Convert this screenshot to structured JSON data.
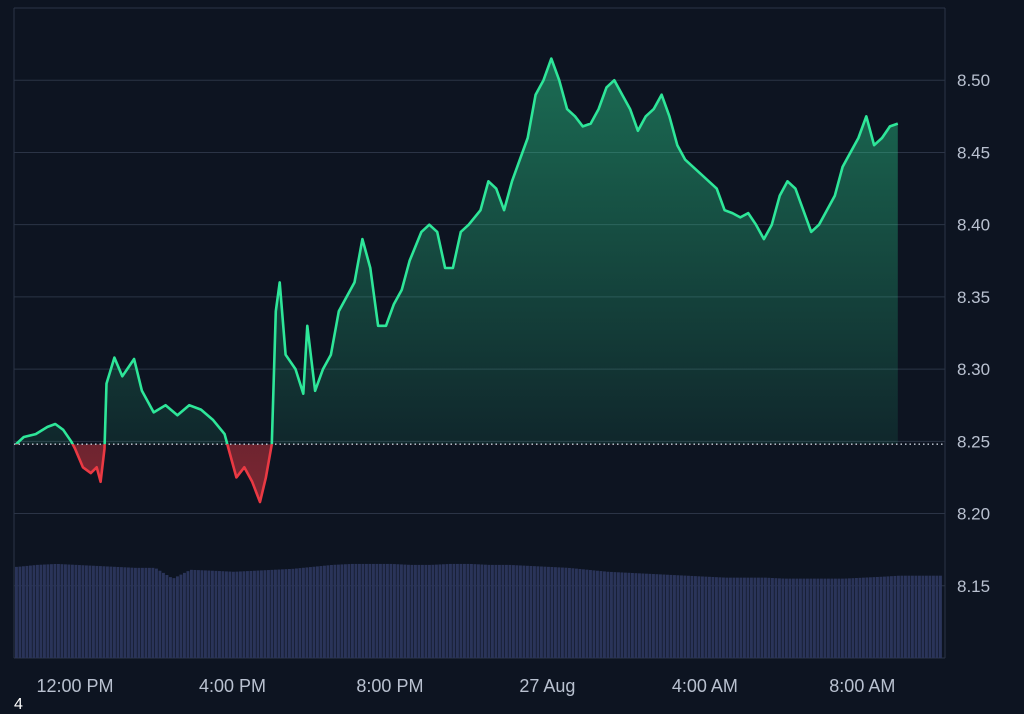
{
  "chart_data": {
    "type": "area",
    "baseline": 8.248,
    "ylim": [
      8.1,
      8.55
    ],
    "y_ticks": [
      "8.50",
      "8.45",
      "8.40",
      "8.35",
      "8.30",
      "8.25",
      "8.20",
      "8.15"
    ],
    "x_ticks": [
      {
        "label": "12:00 PM",
        "t": 1
      },
      {
        "label": "4:00 PM",
        "t": 5
      },
      {
        "label": "8:00 PM",
        "t": 9
      },
      {
        "label": "27 Aug",
        "t": 13
      },
      {
        "label": "4:00 AM",
        "t": 17
      },
      {
        "label": "8:00 AM",
        "t": 21
      }
    ],
    "xlim": [
      -0.55,
      23.1
    ],
    "grid": true,
    "price": [
      [
        -0.5,
        8.248
      ],
      [
        -0.3,
        8.253
      ],
      [
        0.0,
        8.255
      ],
      [
        0.3,
        8.26
      ],
      [
        0.5,
        8.262
      ],
      [
        0.7,
        8.258
      ],
      [
        0.9,
        8.25
      ],
      [
        1.0,
        8.245
      ],
      [
        1.2,
        8.232
      ],
      [
        1.4,
        8.228
      ],
      [
        1.55,
        8.232
      ],
      [
        1.65,
        8.222
      ],
      [
        1.75,
        8.245
      ],
      [
        1.8,
        8.29
      ],
      [
        2.0,
        8.308
      ],
      [
        2.2,
        8.295
      ],
      [
        2.5,
        8.307
      ],
      [
        2.7,
        8.285
      ],
      [
        3.0,
        8.27
      ],
      [
        3.3,
        8.275
      ],
      [
        3.6,
        8.268
      ],
      [
        3.9,
        8.275
      ],
      [
        4.2,
        8.272
      ],
      [
        4.5,
        8.265
      ],
      [
        4.8,
        8.255
      ],
      [
        4.9,
        8.245
      ],
      [
        5.1,
        8.225
      ],
      [
        5.3,
        8.232
      ],
      [
        5.5,
        8.222
      ],
      [
        5.7,
        8.208
      ],
      [
        5.85,
        8.225
      ],
      [
        6.0,
        8.248
      ],
      [
        6.1,
        8.34
      ],
      [
        6.2,
        8.36
      ],
      [
        6.35,
        8.31
      ],
      [
        6.6,
        8.3
      ],
      [
        6.8,
        8.283
      ],
      [
        6.9,
        8.33
      ],
      [
        7.1,
        8.285
      ],
      [
        7.3,
        8.3
      ],
      [
        7.5,
        8.31
      ],
      [
        7.7,
        8.34
      ],
      [
        7.9,
        8.35
      ],
      [
        8.1,
        8.36
      ],
      [
        8.3,
        8.39
      ],
      [
        8.5,
        8.37
      ],
      [
        8.7,
        8.33
      ],
      [
        8.9,
        8.33
      ],
      [
        9.1,
        8.345
      ],
      [
        9.3,
        8.355
      ],
      [
        9.5,
        8.375
      ],
      [
        9.8,
        8.395
      ],
      [
        10.0,
        8.4
      ],
      [
        10.2,
        8.395
      ],
      [
        10.4,
        8.37
      ],
      [
        10.6,
        8.37
      ],
      [
        10.8,
        8.395
      ],
      [
        11.0,
        8.4
      ],
      [
        11.3,
        8.41
      ],
      [
        11.5,
        8.43
      ],
      [
        11.7,
        8.425
      ],
      [
        11.9,
        8.41
      ],
      [
        12.1,
        8.43
      ],
      [
        12.3,
        8.445
      ],
      [
        12.5,
        8.46
      ],
      [
        12.7,
        8.49
      ],
      [
        12.9,
        8.5
      ],
      [
        13.1,
        8.515
      ],
      [
        13.3,
        8.5
      ],
      [
        13.5,
        8.48
      ],
      [
        13.7,
        8.475
      ],
      [
        13.9,
        8.468
      ],
      [
        14.1,
        8.47
      ],
      [
        14.3,
        8.48
      ],
      [
        14.5,
        8.495
      ],
      [
        14.7,
        8.5
      ],
      [
        14.9,
        8.49
      ],
      [
        15.1,
        8.48
      ],
      [
        15.3,
        8.465
      ],
      [
        15.5,
        8.475
      ],
      [
        15.7,
        8.48
      ],
      [
        15.9,
        8.49
      ],
      [
        16.1,
        8.475
      ],
      [
        16.3,
        8.455
      ],
      [
        16.5,
        8.445
      ],
      [
        16.7,
        8.44
      ],
      [
        16.9,
        8.435
      ],
      [
        17.1,
        8.43
      ],
      [
        17.3,
        8.425
      ],
      [
        17.5,
        8.41
      ],
      [
        17.7,
        8.408
      ],
      [
        17.9,
        8.405
      ],
      [
        18.1,
        8.408
      ],
      [
        18.3,
        8.4
      ],
      [
        18.5,
        8.39
      ],
      [
        18.7,
        8.4
      ],
      [
        18.9,
        8.42
      ],
      [
        19.1,
        8.43
      ],
      [
        19.3,
        8.425
      ],
      [
        19.5,
        8.41
      ],
      [
        19.7,
        8.395
      ],
      [
        19.9,
        8.4
      ],
      [
        20.1,
        8.41
      ],
      [
        20.3,
        8.42
      ],
      [
        20.5,
        8.44
      ],
      [
        20.7,
        8.45
      ],
      [
        20.9,
        8.46
      ],
      [
        21.1,
        8.475
      ],
      [
        21.3,
        8.455
      ],
      [
        21.5,
        8.46
      ],
      [
        21.7,
        8.468
      ],
      [
        21.9,
        8.47
      ]
    ],
    "volume": [
      [
        -0.5,
        0.93
      ],
      [
        0.0,
        0.95
      ],
      [
        0.5,
        0.96
      ],
      [
        1.0,
        0.95
      ],
      [
        1.5,
        0.94
      ],
      [
        2.0,
        0.93
      ],
      [
        2.5,
        0.92
      ],
      [
        3.0,
        0.92
      ],
      [
        3.45,
        0.81
      ],
      [
        3.9,
        0.9
      ],
      [
        4.5,
        0.89
      ],
      [
        5.0,
        0.88
      ],
      [
        5.5,
        0.89
      ],
      [
        6.0,
        0.9
      ],
      [
        6.5,
        0.91
      ],
      [
        7.0,
        0.93
      ],
      [
        7.5,
        0.95
      ],
      [
        8.0,
        0.96
      ],
      [
        8.5,
        0.96
      ],
      [
        9.0,
        0.96
      ],
      [
        9.5,
        0.95
      ],
      [
        10.0,
        0.95
      ],
      [
        10.5,
        0.96
      ],
      [
        11.0,
        0.96
      ],
      [
        11.5,
        0.95
      ],
      [
        12.0,
        0.95
      ],
      [
        12.5,
        0.94
      ],
      [
        13.0,
        0.93
      ],
      [
        13.5,
        0.92
      ],
      [
        14.0,
        0.9
      ],
      [
        14.5,
        0.88
      ],
      [
        15.0,
        0.87
      ],
      [
        15.5,
        0.86
      ],
      [
        16.0,
        0.85
      ],
      [
        16.5,
        0.84
      ],
      [
        17.0,
        0.83
      ],
      [
        17.5,
        0.82
      ],
      [
        18.0,
        0.82
      ],
      [
        18.5,
        0.82
      ],
      [
        19.0,
        0.81
      ],
      [
        19.5,
        0.81
      ],
      [
        20.0,
        0.81
      ],
      [
        20.5,
        0.81
      ],
      [
        21.0,
        0.82
      ],
      [
        21.5,
        0.83
      ],
      [
        21.9,
        0.84
      ]
    ]
  },
  "colors": {
    "background": "#0d1421",
    "grid": "#2b3446",
    "up_line": "#2ee699",
    "down_line": "#ea3943",
    "volume": "#2a3459",
    "baseline": "#c9cfdb"
  },
  "corner_label": "4"
}
